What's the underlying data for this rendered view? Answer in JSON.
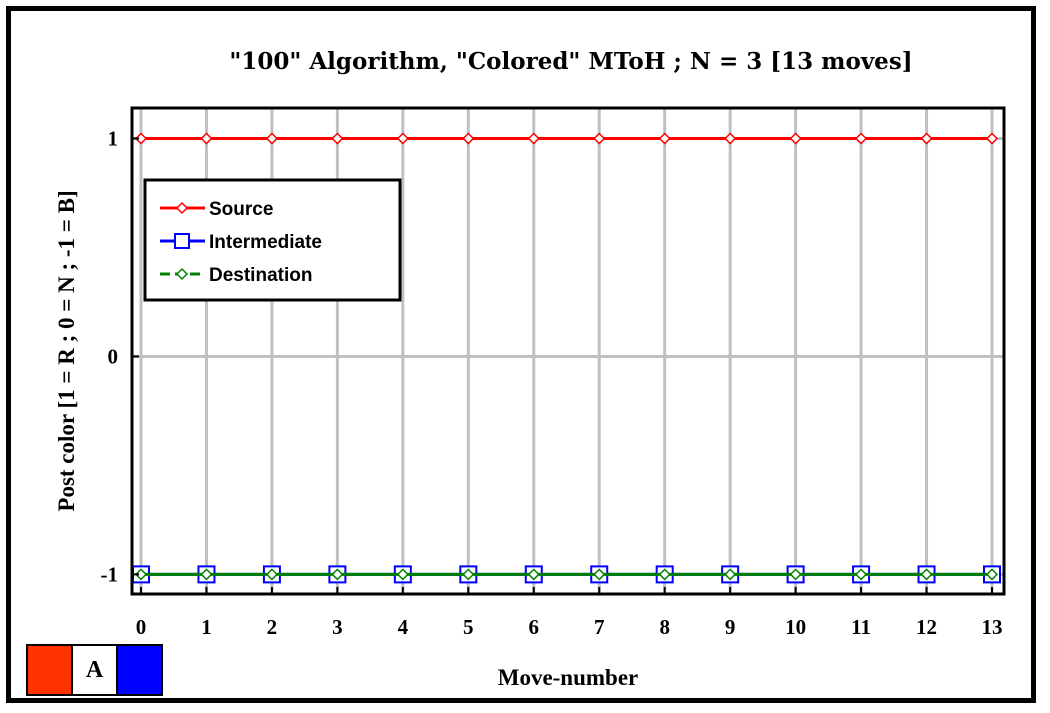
{
  "chart_data": {
    "type": "line",
    "title": "\"100\" Algorithm, \"Colored\" MToH ; N = 3 [13 moves]",
    "xlabel": "Move-number",
    "ylabel": "Post color [1 = R ; 0 = N ; -1 = B]",
    "x": [
      0,
      1,
      2,
      3,
      4,
      5,
      6,
      7,
      8,
      9,
      10,
      11,
      12,
      13
    ],
    "xlim": [
      0,
      13
    ],
    "ylim": [
      -1,
      1
    ],
    "xticks": [
      "0",
      "1",
      "2",
      "3",
      "4",
      "5",
      "6",
      "7",
      "8",
      "9",
      "10",
      "11",
      "12",
      "13"
    ],
    "yticks": [
      {
        "value": 1,
        "label": "1"
      },
      {
        "value": 0,
        "label": "0"
      },
      {
        "value": -1,
        "label": "-1"
      }
    ],
    "grid": true,
    "legend_position": "top-left",
    "series": [
      {
        "name": "Source",
        "color": "#ff0000",
        "marker": "diamond",
        "values": [
          1,
          1,
          1,
          1,
          1,
          1,
          1,
          1,
          1,
          1,
          1,
          1,
          1,
          1
        ]
      },
      {
        "name": "Intermediate",
        "color": "#0000ff",
        "marker": "square",
        "values": [
          -1,
          -1,
          -1,
          -1,
          -1,
          -1,
          -1,
          -1,
          -1,
          -1,
          -1,
          -1,
          -1,
          -1
        ]
      },
      {
        "name": "Destination",
        "color": "#008000",
        "marker": "diamond",
        "values": [
          -1,
          -1,
          -1,
          -1,
          -1,
          -1,
          -1,
          -1,
          -1,
          -1,
          -1,
          -1,
          -1,
          -1
        ]
      }
    ]
  },
  "badges": {
    "left_color": "#ff3300",
    "middle_label": "A",
    "right_color": "#0000ff"
  }
}
